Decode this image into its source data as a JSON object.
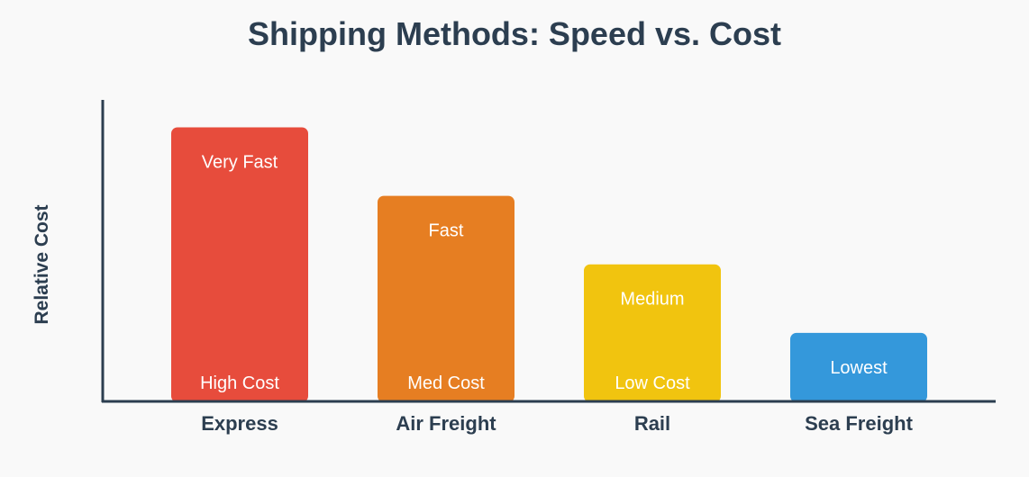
{
  "chart_data": {
    "type": "bar",
    "title": "Shipping Methods: Speed vs. Cost",
    "xlabel": "",
    "ylabel": "Relative Cost",
    "categories": [
      "Express",
      "Air Freight",
      "Rail",
      "Sea Freight"
    ],
    "values": [
      4,
      3,
      2,
      1
    ],
    "ylim": [
      0,
      4.4
    ],
    "grid": false,
    "speed_labels": [
      "Very Fast",
      "Fast",
      "Medium",
      "Lowest"
    ],
    "cost_labels": [
      "High Cost",
      "Med Cost",
      "Low Cost",
      ""
    ],
    "colors": [
      "#e74c3c",
      "#e67e22",
      "#f1c40f",
      "#3498db"
    ],
    "axis_color": "#2c3e50"
  }
}
